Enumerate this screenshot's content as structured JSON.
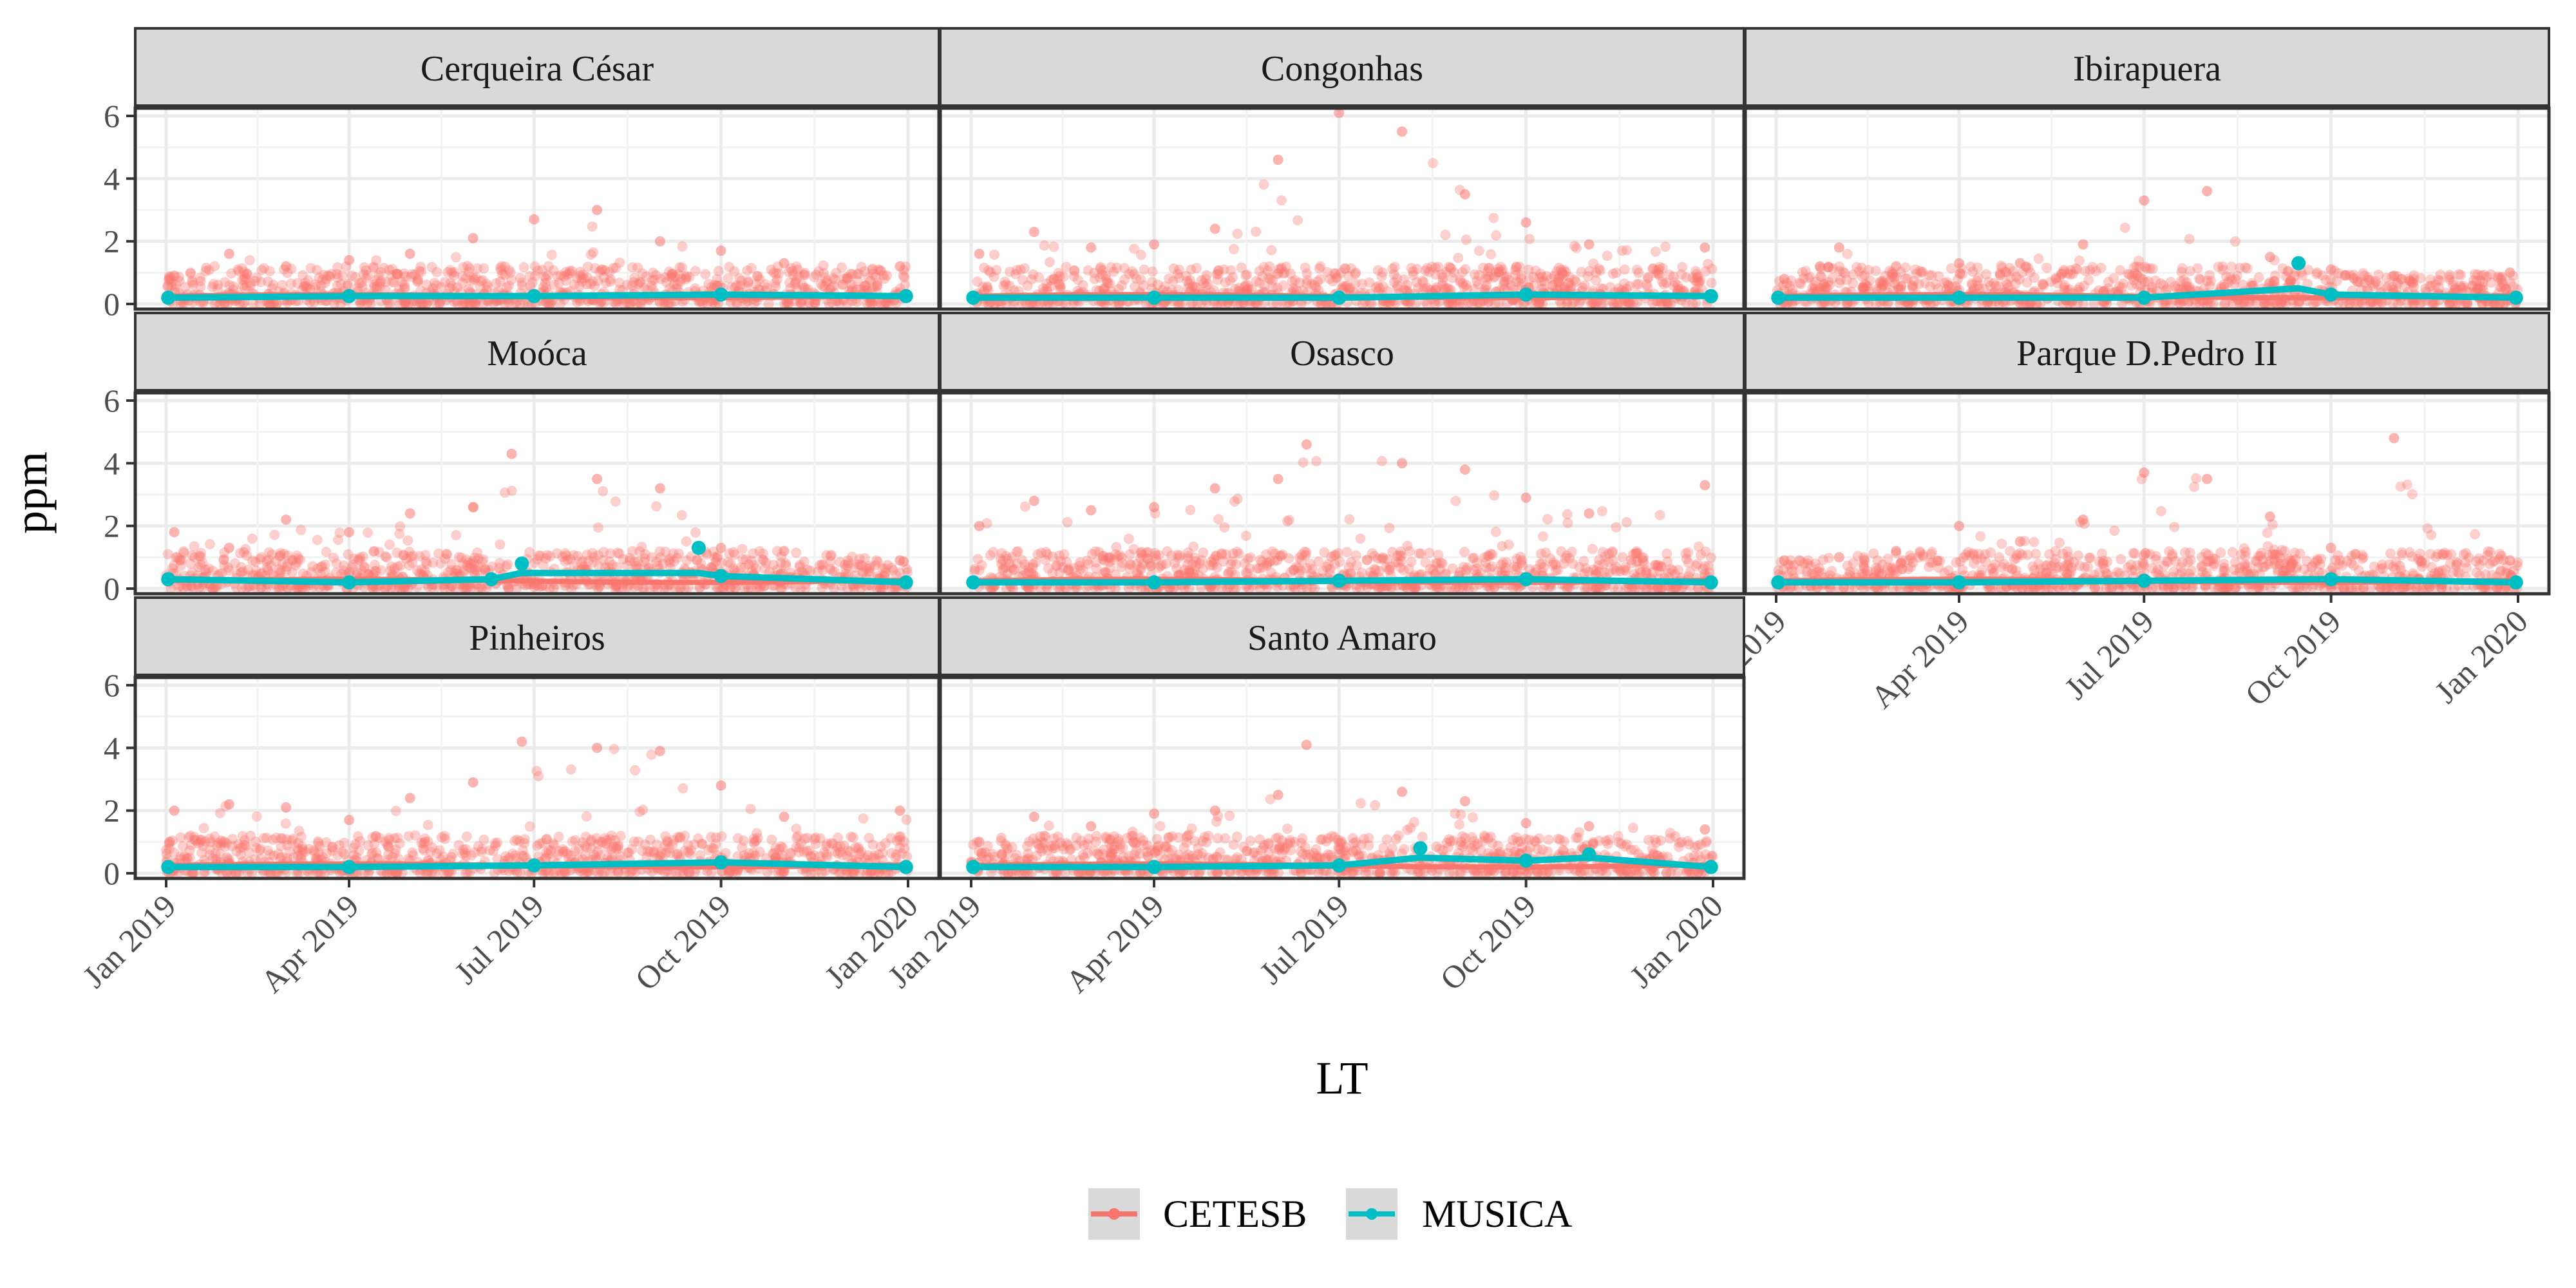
{
  "chart_data": {
    "type": "scatter",
    "title": "",
    "xlabel": "LT",
    "ylabel": "ppm",
    "x_range": [
      "2019-01-01",
      "2020-01-01"
    ],
    "x_ticks": [
      "Jan 2019",
      "Apr 2019",
      "Jul 2019",
      "Oct 2019",
      "Jan 2020"
    ],
    "x_tick_dates": [
      "2019-01-01",
      "2019-04-01",
      "2019-07-01",
      "2019-10-01",
      "2020-01-01"
    ],
    "ylim": [
      0,
      6
    ],
    "y_ticks": [
      0,
      2,
      4,
      6
    ],
    "grid": true,
    "legend": {
      "position": "bottom",
      "entries": [
        {
          "name": "CETESB",
          "color": "#F8766D"
        },
        {
          "name": "MUSICA",
          "color": "#00BFC4"
        }
      ]
    },
    "series_colors": {
      "CETESB": "#F8766D",
      "MUSICA": "#00BFC4"
    },
    "facets": [
      {
        "name": "Cerqueira César",
        "series": [
          {
            "name": "CETESB",
            "x": [
              "2019-01-05",
              "2019-02-01",
              "2019-03-01",
              "2019-04-01",
              "2019-05-01",
              "2019-06-01",
              "2019-07-01",
              "2019-08-01",
              "2019-09-01",
              "2019-10-01",
              "2019-11-01",
              "2019-12-28"
            ],
            "values": [
              0.9,
              1.6,
              1.2,
              1.4,
              1.6,
              2.1,
              2.7,
              3.0,
              2.0,
              1.7,
              1.3,
              1.2
            ]
          },
          {
            "name": "MUSICA",
            "x": [
              "2019-01-02",
              "2019-04-01",
              "2019-07-01",
              "2019-10-01",
              "2019-12-31"
            ],
            "values": [
              0.2,
              0.25,
              0.25,
              0.3,
              0.25
            ]
          }
        ]
      },
      {
        "name": "Congonhas",
        "series": [
          {
            "name": "CETESB",
            "x": [
              "2019-01-05",
              "2019-02-01",
              "2019-03-01",
              "2019-04-01",
              "2019-05-01",
              "2019-06-01",
              "2019-07-01",
              "2019-08-01",
              "2019-09-01",
              "2019-10-01",
              "2019-11-01",
              "2019-12-28"
            ],
            "values": [
              1.6,
              2.3,
              1.8,
              1.9,
              2.4,
              4.6,
              6.1,
              5.5,
              3.5,
              2.6,
              1.9,
              1.8
            ]
          },
          {
            "name": "MUSICA",
            "x": [
              "2019-01-02",
              "2019-04-01",
              "2019-07-01",
              "2019-10-01",
              "2019-12-31"
            ],
            "values": [
              0.2,
              0.2,
              0.2,
              0.3,
              0.25
            ]
          }
        ]
      },
      {
        "name": "Ibirapuera",
        "series": [
          {
            "name": "CETESB",
            "x": [
              "2019-01-05",
              "2019-02-01",
              "2019-03-01",
              "2019-04-01",
              "2019-05-01",
              "2019-06-01",
              "2019-07-01",
              "2019-08-01",
              "2019-09-01",
              "2019-10-01",
              "2019-11-01",
              "2019-12-28"
            ],
            "values": [
              0.8,
              1.8,
              1.2,
              1.3,
              1.3,
              1.9,
              3.3,
              3.6,
              1.5,
              1.1,
              0.9,
              1.0
            ]
          },
          {
            "name": "MUSICA",
            "x": [
              "2019-01-02",
              "2019-04-01",
              "2019-07-01",
              "2019-09-15",
              "2019-10-01",
              "2019-12-31"
            ],
            "values": [
              0.2,
              0.2,
              0.2,
              1.3,
              0.3,
              0.2
            ]
          }
        ]
      },
      {
        "name": "Moóca",
        "series": [
          {
            "name": "CETESB",
            "x": [
              "2019-01-05",
              "2019-02-01",
              "2019-03-01",
              "2019-04-01",
              "2019-05-01",
              "2019-06-01",
              "2019-06-20",
              "2019-08-01",
              "2019-09-01",
              "2019-10-01",
              "2019-11-01",
              "2019-12-28"
            ],
            "values": [
              1.8,
              1.3,
              2.2,
              1.8,
              2.4,
              2.6,
              4.3,
              3.5,
              3.2,
              1.3,
              1.2,
              0.9
            ]
          },
          {
            "name": "MUSICA",
            "x": [
              "2019-01-02",
              "2019-04-01",
              "2019-06-10",
              "2019-06-25",
              "2019-09-20",
              "2019-10-01",
              "2019-12-31"
            ],
            "values": [
              0.3,
              0.2,
              0.3,
              0.8,
              1.3,
              0.4,
              0.2
            ]
          }
        ]
      },
      {
        "name": "Osasco",
        "series": [
          {
            "name": "CETESB",
            "x": [
              "2019-01-05",
              "2019-02-01",
              "2019-03-01",
              "2019-04-01",
              "2019-05-01",
              "2019-06-01",
              "2019-06-15",
              "2019-08-01",
              "2019-09-01",
              "2019-10-01",
              "2019-11-01",
              "2019-12-28"
            ],
            "values": [
              2.0,
              2.8,
              2.5,
              2.6,
              3.2,
              3.5,
              4.6,
              4.0,
              3.8,
              2.9,
              2.4,
              3.3
            ]
          },
          {
            "name": "MUSICA",
            "x": [
              "2019-01-02",
              "2019-04-01",
              "2019-07-01",
              "2019-10-01",
              "2019-12-31"
            ],
            "values": [
              0.2,
              0.2,
              0.25,
              0.3,
              0.2
            ]
          }
        ]
      },
      {
        "name": "Parque D.Pedro II",
        "series": [
          {
            "name": "CETESB",
            "x": [
              "2019-01-05",
              "2019-02-01",
              "2019-03-01",
              "2019-04-01",
              "2019-05-01",
              "2019-06-01",
              "2019-07-01",
              "2019-08-01",
              "2019-09-01",
              "2019-10-01",
              "2019-11-01",
              "2019-12-28"
            ],
            "values": [
              0.9,
              1.0,
              1.2,
              2.0,
              1.5,
              2.2,
              3.7,
              3.5,
              2.3,
              1.3,
              4.8,
              0.9
            ]
          },
          {
            "name": "MUSICA",
            "x": [
              "2019-01-02",
              "2019-04-01",
              "2019-07-01",
              "2019-10-01",
              "2019-12-31"
            ],
            "values": [
              0.2,
              0.2,
              0.25,
              0.3,
              0.2
            ]
          }
        ]
      },
      {
        "name": "Pinheiros",
        "series": [
          {
            "name": "CETESB",
            "x": [
              "2019-01-05",
              "2019-02-01",
              "2019-03-01",
              "2019-04-01",
              "2019-05-01",
              "2019-06-01",
              "2019-06-25",
              "2019-08-01",
              "2019-09-01",
              "2019-10-01",
              "2019-11-01",
              "2019-12-28"
            ],
            "values": [
              2.0,
              2.2,
              2.1,
              1.7,
              2.4,
              2.9,
              4.2,
              4.0,
              3.9,
              2.8,
              1.8,
              2.0
            ]
          },
          {
            "name": "MUSICA",
            "x": [
              "2019-01-02",
              "2019-04-01",
              "2019-07-01",
              "2019-10-01",
              "2019-12-31"
            ],
            "values": [
              0.2,
              0.2,
              0.25,
              0.35,
              0.2
            ]
          }
        ]
      },
      {
        "name": "Santo Amaro",
        "series": [
          {
            "name": "CETESB",
            "x": [
              "2019-01-05",
              "2019-02-01",
              "2019-03-01",
              "2019-04-01",
              "2019-05-01",
              "2019-06-01",
              "2019-06-15",
              "2019-08-01",
              "2019-09-01",
              "2019-10-01",
              "2019-11-01",
              "2019-12-28"
            ],
            "values": [
              1.0,
              1.8,
              1.5,
              1.9,
              2.0,
              2.5,
              4.1,
              2.6,
              2.3,
              1.6,
              1.5,
              1.4
            ]
          },
          {
            "name": "MUSICA",
            "x": [
              "2019-01-02",
              "2019-04-01",
              "2019-07-01",
              "2019-08-10",
              "2019-10-01",
              "2019-11-01",
              "2019-12-31"
            ],
            "values": [
              0.2,
              0.2,
              0.25,
              0.8,
              0.4,
              0.6,
              0.2
            ]
          }
        ]
      }
    ]
  }
}
